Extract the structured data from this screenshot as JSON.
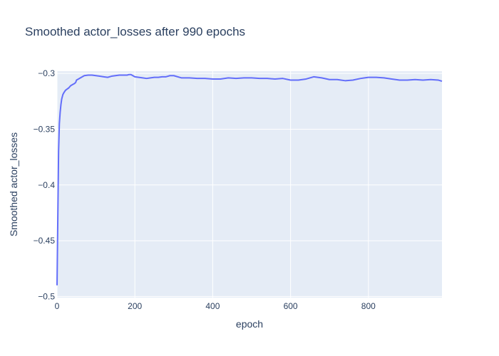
{
  "chart_data": {
    "type": "line",
    "title": "Smoothed actor_losses after 990 epochs",
    "xlabel": "epoch",
    "ylabel": "Smoothed actor_losses",
    "xlim": [
      0,
      989
    ],
    "ylim": [
      -0.501,
      -0.298
    ],
    "x_ticks": [
      0,
      200,
      400,
      600,
      800
    ],
    "x_tick_labels": [
      "0",
      "200",
      "400",
      "600",
      "800"
    ],
    "y_ticks": [
      -0.5,
      -0.45,
      -0.4,
      -0.35,
      -0.3
    ],
    "y_tick_labels": [
      "−0.5",
      "−0.45",
      "−0.4",
      "−0.35",
      "−0.3"
    ],
    "grid": true,
    "colors": {
      "line": "#636efa",
      "plot_bg": "#e5ecf6",
      "grid": "#ffffff",
      "text": "#2a3f5f"
    },
    "series": [
      {
        "x": [
          0,
          2,
          4,
          6,
          8,
          10,
          12,
          15,
          18,
          22,
          26,
          30,
          35,
          40,
          45,
          48,
          50,
          55,
          60,
          70,
          80,
          90,
          100,
          110,
          120,
          130,
          140,
          150,
          160,
          170,
          180,
          185,
          190,
          200,
          210,
          220,
          230,
          240,
          250,
          260,
          270,
          280,
          290,
          300,
          320,
          340,
          360,
          380,
          400,
          420,
          440,
          460,
          480,
          500,
          520,
          540,
          560,
          580,
          600,
          620,
          640,
          660,
          680,
          700,
          720,
          740,
          760,
          780,
          800,
          820,
          840,
          860,
          880,
          900,
          920,
          940,
          960,
          980,
          989
        ],
        "y": [
          -0.49,
          -0.43,
          -0.37,
          -0.345,
          -0.335,
          -0.328,
          -0.323,
          -0.319,
          -0.317,
          -0.315,
          -0.314,
          -0.313,
          -0.311,
          -0.31,
          -0.309,
          -0.308,
          -0.306,
          -0.305,
          -0.304,
          -0.302,
          -0.3015,
          -0.3015,
          -0.302,
          -0.3025,
          -0.303,
          -0.3035,
          -0.3025,
          -0.302,
          -0.3015,
          -0.3015,
          -0.3015,
          -0.301,
          -0.301,
          -0.303,
          -0.3035,
          -0.304,
          -0.3045,
          -0.304,
          -0.3035,
          -0.3035,
          -0.303,
          -0.303,
          -0.302,
          -0.302,
          -0.304,
          -0.304,
          -0.3045,
          -0.3045,
          -0.305,
          -0.305,
          -0.304,
          -0.3045,
          -0.304,
          -0.304,
          -0.3045,
          -0.3045,
          -0.305,
          -0.3045,
          -0.306,
          -0.306,
          -0.305,
          -0.303,
          -0.304,
          -0.3055,
          -0.3055,
          -0.3065,
          -0.306,
          -0.3045,
          -0.3035,
          -0.3035,
          -0.304,
          -0.305,
          -0.306,
          -0.306,
          -0.3055,
          -0.306,
          -0.3055,
          -0.306,
          -0.307
        ]
      }
    ]
  }
}
